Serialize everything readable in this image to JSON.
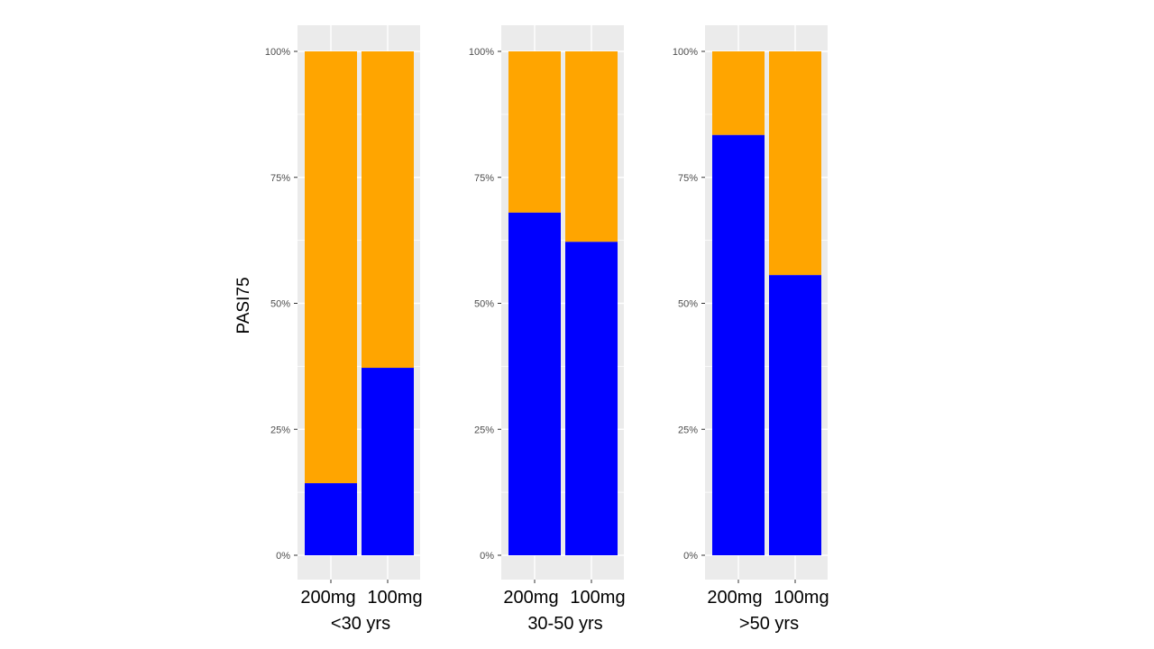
{
  "chart_data": {
    "type": "bar",
    "stacked": true,
    "percent": true,
    "ylabel": "PASI75",
    "ylim": [
      0,
      1
    ],
    "y_ticks": [
      "0%",
      "25%",
      "50%",
      "75%",
      "100%"
    ],
    "y_tick_values": [
      0,
      0.25,
      0.5,
      0.75,
      1
    ],
    "categories": [
      "200mg",
      "100mg"
    ],
    "stack_colors": {
      "lower": "#0000ff",
      "upper": "#ffa500"
    },
    "panels": [
      {
        "group": "<30 yrs",
        "lower_values": [
          0.143,
          0.372
        ]
      },
      {
        "group": "30-50 yrs",
        "lower_values": [
          0.68,
          0.622
        ]
      },
      {
        "group": ">50 yrs",
        "lower_values": [
          0.834,
          0.556
        ]
      }
    ]
  }
}
